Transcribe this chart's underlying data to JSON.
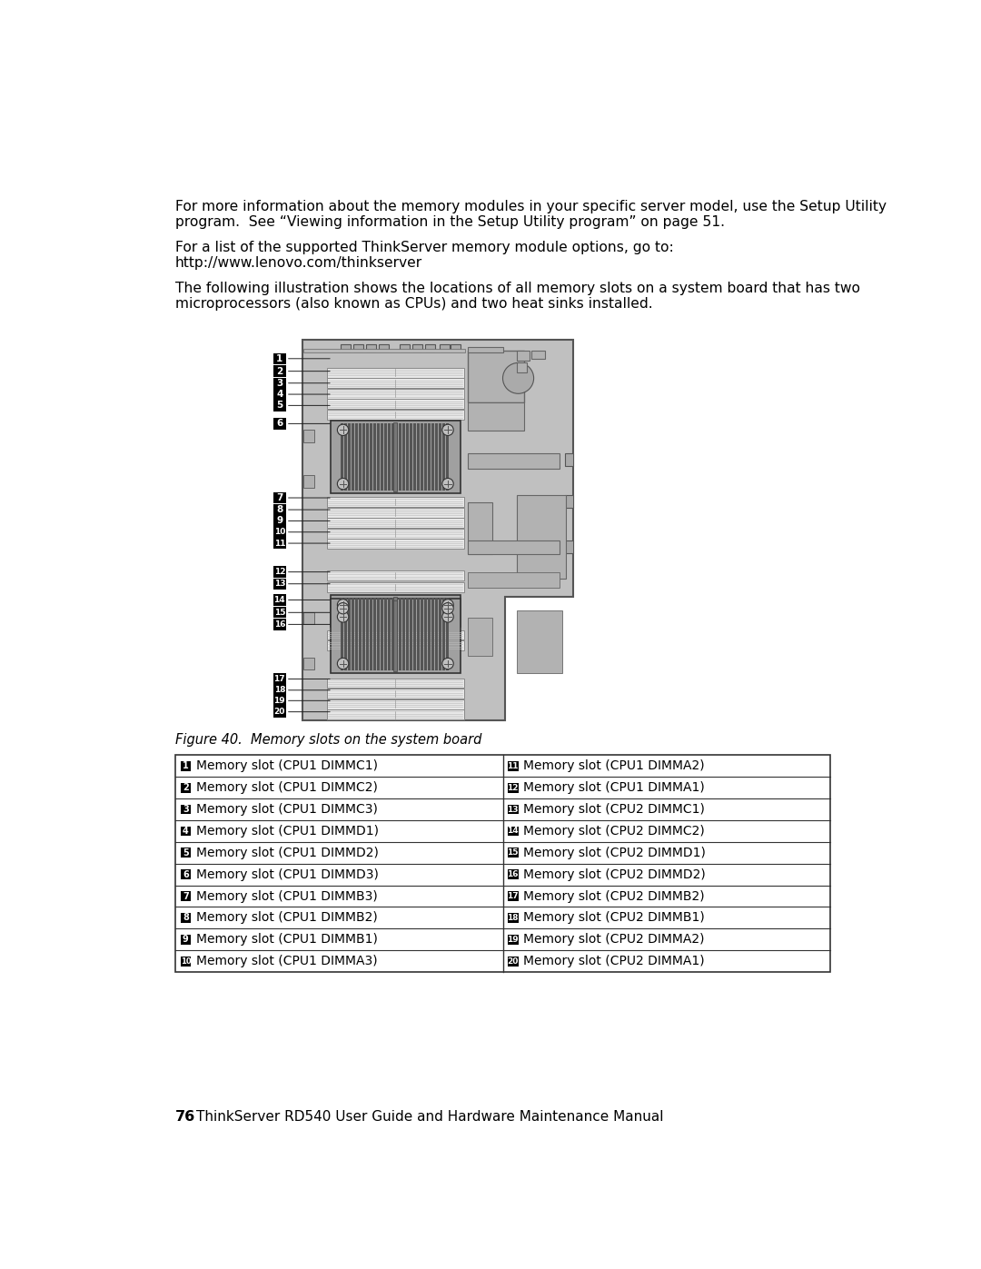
{
  "bg_color": "#ffffff",
  "text_color": "#000000",
  "para1_line1": "For more information about the memory modules in your specific server model, use the Setup Utility",
  "para1_line2": "program.  See “Viewing information in the Setup Utility program” on page 51.",
  "para2_line1": "For a list of the supported ThinkServer memory module options, go to:",
  "para2_line2": "http://www.lenovo.com/thinkserver",
  "para3_line1": "The following illustration shows the locations of all memory slots on a system board that has two",
  "para3_line2": "microprocessors (also known as CPUs) and two heat sinks installed.",
  "fig_caption": "Figure 40.  Memory slots on the system board",
  "table_left": [
    [
      "1",
      "Memory slot (CPU1 DIMMC1)"
    ],
    [
      "2",
      "Memory slot (CPU1 DIMMC2)"
    ],
    [
      "3",
      "Memory slot (CPU1 DIMMC3)"
    ],
    [
      "4",
      "Memory slot (CPU1 DIMMD1)"
    ],
    [
      "5",
      "Memory slot (CPU1 DIMMD2)"
    ],
    [
      "6",
      "Memory slot (CPU1 DIMMD3)"
    ],
    [
      "7",
      "Memory slot (CPU1 DIMMB3)"
    ],
    [
      "8",
      "Memory slot (CPU1 DIMMB2)"
    ],
    [
      "9",
      "Memory slot (CPU1 DIMMB1)"
    ],
    [
      "10",
      "Memory slot (CPU1 DIMMA3)"
    ]
  ],
  "table_right": [
    [
      "11",
      "Memory slot (CPU1 DIMMA2)"
    ],
    [
      "12",
      "Memory slot (CPU1 DIMMA1)"
    ],
    [
      "13",
      "Memory slot (CPU2 DIMMC1)"
    ],
    [
      "14",
      "Memory slot (CPU2 DIMMC2)"
    ],
    [
      "15",
      "Memory slot (CPU2 DIMMD1)"
    ],
    [
      "16",
      "Memory slot (CPU2 DIMMD2)"
    ],
    [
      "17",
      "Memory slot (CPU2 DIMMB2)"
    ],
    [
      "18",
      "Memory slot (CPU2 DIMMB1)"
    ],
    [
      "19",
      "Memory slot (CPU2 DIMMA2)"
    ],
    [
      "20",
      "Memory slot (CPU2 DIMMA1)"
    ]
  ],
  "footer_bold": "76",
  "footer_text": "ThinkServer RD540 User Guide and Hardware Maintenance Manual",
  "badge_color": "#000000",
  "badge_text_color": "#ffffff",
  "board_fill": "#c0c0c0",
  "board_edge": "#555555",
  "slot_fill": "#e8e8e8",
  "slot_edge": "#888888",
  "heatsink_fill": "#888888",
  "heatsink_fin": "#555555",
  "heatsink_edge": "#333333"
}
